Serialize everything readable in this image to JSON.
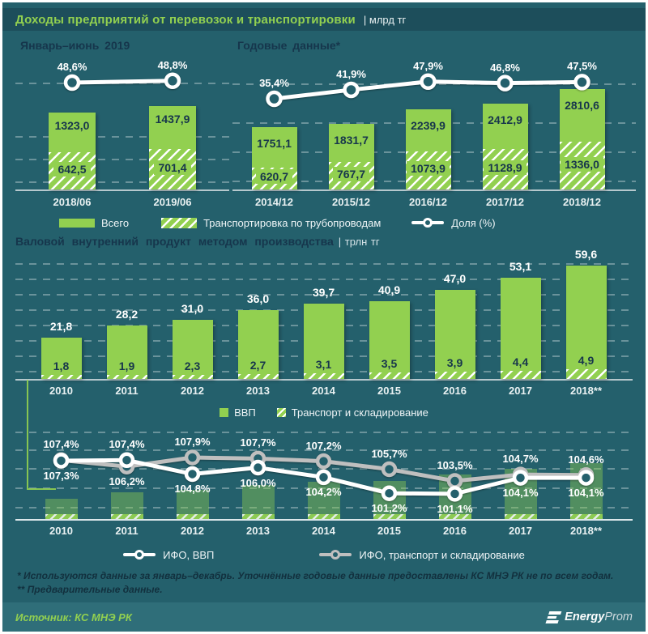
{
  "header": {
    "title": "Доходы предприятий от перевозок и транспортировки",
    "unit": "| млрд тг"
  },
  "colors": {
    "background": "#24606c",
    "title_band": "#1d4e5b",
    "footer_band": "#2f6e79",
    "accent_green": "#92d050",
    "dark_text": "#16364c",
    "gray_line": "#bfbfbf",
    "white_line": "#ffffff"
  },
  "legend_top": [
    {
      "label": "Всего",
      "swatch": "solid-green"
    },
    {
      "label": "Транспортировка по трубопроводам",
      "swatch": "hatched"
    },
    {
      "label": "Доля (%)",
      "swatch": "line-marker"
    }
  ],
  "legend_gdp": [
    {
      "label": "ВВП",
      "swatch": "solid-green"
    },
    {
      "label": "Транспорт и складирование",
      "swatch": "hatched"
    }
  ],
  "legend_ifo": [
    {
      "label": "ИФО, ВВП",
      "swatch": "line-white"
    },
    {
      "label": "ИФО, транспорт и складирование",
      "swatch": "line-gray"
    }
  ],
  "footnotes": [
    "* Используются данные за январь–декабрь. Уточнённые годовые данные предоставлены КС МНЭ РК не по всем годам.",
    "** Предварительные данные."
  ],
  "source": "Источник: КС МНЭ РК",
  "logo": {
    "bold": "Energy",
    "light": "Prom"
  },
  "chart_data": [
    {
      "id": "halfyear",
      "type": "bar",
      "title": "Январь–июнь  2019",
      "unit": "млрд тг",
      "legend_position": "bottom-shared",
      "grid": "dashed-horizontal",
      "categories": [
        "2018/06",
        "2019/06"
      ],
      "series": [
        {
          "name": "Всего",
          "type": "bar",
          "values": [
            1323.0,
            1437.9
          ],
          "labels": [
            "1323,0",
            "1437,9"
          ]
        },
        {
          "name": "Транспортировка по трубопроводам",
          "type": "bar-hatched",
          "values": [
            642.5,
            701.4
          ],
          "labels": [
            "642,5",
            "701,4"
          ]
        },
        {
          "name": "Доля (%)",
          "type": "line",
          "values": [
            48.6,
            48.8
          ],
          "labels": [
            "48,6%",
            "48,8%"
          ]
        }
      ]
    },
    {
      "id": "annual",
      "type": "bar",
      "title": "Годовые данные*",
      "unit": "млрд тг",
      "legend_position": "bottom-shared",
      "grid": "dashed-horizontal",
      "categories": [
        "2014/12",
        "2015/12",
        "2016/12",
        "2017/12",
        "2018/12"
      ],
      "series": [
        {
          "name": "Всего",
          "type": "bar",
          "values": [
            1751.1,
            1831.7,
            2239.9,
            2412.9,
            2810.6
          ],
          "labels": [
            "1751,1",
            "1831,7",
            "2239,9",
            "2412,9",
            "2810,6"
          ]
        },
        {
          "name": "Транспортировка по трубопроводам",
          "type": "bar-hatched",
          "values": [
            620.7,
            767.7,
            1073.9,
            1128.9,
            1336.0
          ],
          "labels": [
            "620,7",
            "767,7",
            "1073,9",
            "1128,9",
            "1336,0"
          ]
        },
        {
          "name": "Доля (%)",
          "type": "line",
          "values": [
            35.4,
            41.9,
            47.9,
            46.8,
            47.5
          ],
          "labels": [
            "35,4%",
            "41,9%",
            "47,9%",
            "46,8%",
            "47,5%"
          ]
        }
      ]
    },
    {
      "id": "gdp",
      "type": "bar",
      "title": "Валовой внутренний продукт методом производства",
      "unit": "| трлн тг",
      "legend_position": "bottom",
      "grid": "dashed-horizontal",
      "categories": [
        "2010",
        "2011",
        "2012",
        "2013",
        "2014",
        "2015",
        "2016",
        "2017",
        "2018**"
      ],
      "series": [
        {
          "name": "ВВП",
          "type": "bar",
          "values": [
            21.8,
            28.2,
            31.0,
            36.0,
            39.7,
            40.9,
            47.0,
            53.1,
            59.6
          ],
          "labels": [
            "21,8",
            "28,2",
            "31,0",
            "36,0",
            "39,7",
            "40,9",
            "47,0",
            "53,1",
            "59,6"
          ]
        },
        {
          "name": "Транспорт и складирование",
          "type": "bar-hatched",
          "values": [
            1.8,
            1.9,
            2.3,
            2.7,
            3.1,
            3.5,
            3.9,
            4.4,
            4.9
          ],
          "labels": [
            "1,8",
            "1,9",
            "2,3",
            "2,7",
            "3,1",
            "3,5",
            "3,9",
            "4,4",
            "4,9"
          ]
        }
      ]
    },
    {
      "id": "ifo",
      "type": "line",
      "title": "",
      "unit": "%",
      "legend_position": "bottom",
      "grid": "dashed-horizontal",
      "categories": [
        "2010",
        "2011",
        "2012",
        "2013",
        "2014",
        "2015",
        "2016",
        "2017",
        "2018**"
      ],
      "series": [
        {
          "name": "ИФО, ВВП",
          "type": "line",
          "color": "#ffffff",
          "values": [
            107.3,
            107.4,
            104.8,
            106.0,
            104.2,
            101.2,
            101.1,
            104.1,
            104.1
          ],
          "labels": [
            "107,3%",
            "107,4%",
            "104,8%",
            "106,0%",
            "104,2%",
            "101,2%",
            "101,1%",
            "104,1%",
            "104,1%"
          ]
        },
        {
          "name": "ИФО, транспорт и складирование",
          "type": "line",
          "color": "#bfbfbf",
          "values": [
            107.4,
            106.2,
            107.9,
            107.7,
            107.2,
            105.7,
            103.5,
            104.7,
            104.6
          ],
          "labels": [
            "107,4%",
            "106,2%",
            "107,9%",
            "107,7%",
            "107,2%",
            "105,7%",
            "103,5%",
            "104,7%",
            "104,6%"
          ]
        }
      ]
    }
  ]
}
